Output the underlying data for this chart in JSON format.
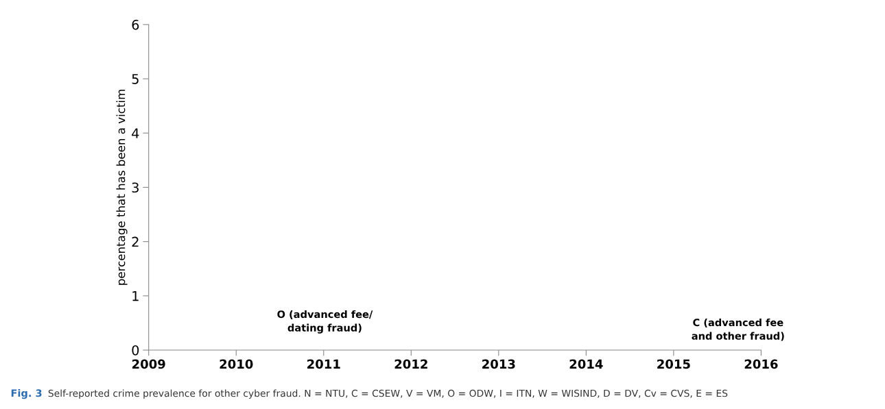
{
  "chart_data": {
    "type": "scatter",
    "ylabel": "percentage that has been a victim",
    "xlim": [
      2009,
      2016
    ],
    "xticks": [
      2009,
      2010,
      2011,
      2012,
      2013,
      2014,
      2015,
      2016
    ],
    "ylim": [
      0,
      6
    ],
    "yticks": [
      0,
      1,
      2,
      3,
      4,
      5,
      6
    ],
    "grid": false,
    "legend": false,
    "annotations": [
      "O (advanced fee/\ndating fraud)",
      "C (advanced fee\nand other fraud)",
      "Fig. 3",
      "Self-reported crime prevalence for other cyber fraud. N = NTU, C = CSEW, V = VM, O = ODW, I = ITN, W = WISIND, D = DV, Cv = CVS, E = ES"
    ]
  }
}
